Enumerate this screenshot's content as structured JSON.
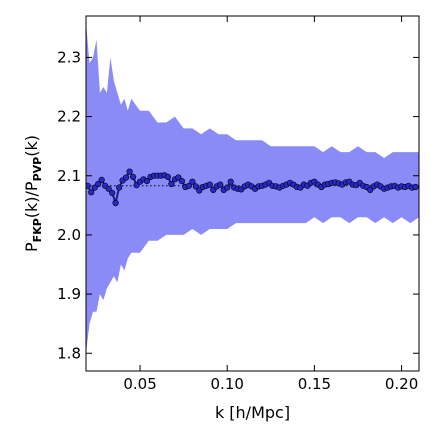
{
  "chart_data": {
    "type": "line",
    "xlabel": "k [h/Mpc]",
    "ylabel": {
      "prefix": "P",
      "sub1": "FKP",
      "mid": "(k)/P",
      "sub2": "PVP",
      "suffix": "(k)"
    },
    "xlim": [
      0.019,
      0.21
    ],
    "ylim": [
      1.77,
      2.37
    ],
    "xticks": [
      0.05,
      0.1,
      0.15,
      0.2
    ],
    "xtick_labels": [
      "0.05",
      "0.10",
      "0.15",
      "0.20"
    ],
    "yticks": [
      1.8,
      1.9,
      2.0,
      2.1,
      2.2,
      2.3
    ],
    "ytick_labels": [
      "1.8",
      "1.9",
      "2.0",
      "2.1",
      "2.2",
      "2.3"
    ],
    "reference_line": {
      "y": 2.083,
      "style": "dotted"
    },
    "colors": {
      "band": "#8b8bf7",
      "line": "#1c1c8c",
      "marker": "#2828c8"
    },
    "series": [
      {
        "role": "mean",
        "x": [
          0.02,
          0.022,
          0.024,
          0.026,
          0.028,
          0.03,
          0.032,
          0.034,
          0.036,
          0.038,
          0.04,
          0.042,
          0.044,
          0.046,
          0.048,
          0.05,
          0.052,
          0.054,
          0.056,
          0.058,
          0.06,
          0.062,
          0.064,
          0.066,
          0.068,
          0.07,
          0.072,
          0.074,
          0.076,
          0.078,
          0.08,
          0.082,
          0.084,
          0.086,
          0.088,
          0.09,
          0.092,
          0.094,
          0.096,
          0.098,
          0.1,
          0.102,
          0.104,
          0.106,
          0.108,
          0.11,
          0.112,
          0.114,
          0.116,
          0.118,
          0.12,
          0.122,
          0.124,
          0.126,
          0.128,
          0.13,
          0.132,
          0.134,
          0.136,
          0.138,
          0.14,
          0.142,
          0.144,
          0.146,
          0.148,
          0.15,
          0.152,
          0.154,
          0.156,
          0.158,
          0.16,
          0.162,
          0.164,
          0.166,
          0.168,
          0.17,
          0.172,
          0.174,
          0.176,
          0.178,
          0.18,
          0.182,
          0.184,
          0.186,
          0.188,
          0.19,
          0.192,
          0.194,
          0.196,
          0.198,
          0.2,
          0.202,
          0.204,
          0.206,
          0.208
        ],
        "y": [
          2.083,
          2.072,
          2.08,
          2.086,
          2.093,
          2.083,
          2.078,
          2.071,
          2.054,
          2.08,
          2.092,
          2.097,
          2.107,
          2.098,
          2.084,
          2.09,
          2.094,
          2.091,
          2.098,
          2.1,
          2.1,
          2.1,
          2.101,
          2.098,
          2.086,
          2.094,
          2.097,
          2.091,
          2.081,
          2.083,
          2.09,
          2.082,
          2.075,
          2.081,
          2.083,
          2.085,
          2.076,
          2.082,
          2.085,
          2.076,
          2.08,
          2.09,
          2.08,
          2.078,
          2.077,
          2.082,
          2.085,
          2.082,
          2.078,
          2.082,
          2.083,
          2.085,
          2.088,
          2.083,
          2.082,
          2.08,
          2.083,
          2.085,
          2.088,
          2.085,
          2.081,
          2.08,
          2.085,
          2.083,
          2.088,
          2.09,
          2.085,
          2.081,
          2.085,
          2.086,
          2.088,
          2.089,
          2.087,
          2.085,
          2.089,
          2.09,
          2.085,
          2.084,
          2.088,
          2.083,
          2.081,
          2.076,
          2.082,
          2.085,
          2.082,
          2.078,
          2.08,
          2.082,
          2.083,
          2.08,
          2.082,
          2.081,
          2.083,
          2.08,
          2.081
        ]
      },
      {
        "role": "band-upper",
        "x": [
          0.019,
          0.021,
          0.023,
          0.025,
          0.027,
          0.029,
          0.031,
          0.033,
          0.035,
          0.037,
          0.039,
          0.041,
          0.043,
          0.045,
          0.05,
          0.055,
          0.06,
          0.065,
          0.07,
          0.075,
          0.08,
          0.085,
          0.09,
          0.095,
          0.1,
          0.105,
          0.11,
          0.115,
          0.12,
          0.125,
          0.13,
          0.135,
          0.14,
          0.145,
          0.15,
          0.155,
          0.16,
          0.165,
          0.17,
          0.175,
          0.18,
          0.185,
          0.19,
          0.195,
          0.2,
          0.205,
          0.21
        ],
        "y": [
          2.36,
          2.29,
          2.3,
          2.33,
          2.24,
          2.25,
          2.24,
          2.3,
          2.26,
          2.24,
          2.22,
          2.23,
          2.21,
          2.23,
          2.21,
          2.21,
          2.19,
          2.19,
          2.2,
          2.18,
          2.18,
          2.17,
          2.18,
          2.17,
          2.17,
          2.16,
          2.16,
          2.16,
          2.16,
          2.15,
          2.15,
          2.15,
          2.15,
          2.15,
          2.15,
          2.14,
          2.15,
          2.14,
          2.14,
          2.15,
          2.14,
          2.14,
          2.13,
          2.14,
          2.14,
          2.14,
          2.14
        ]
      },
      {
        "role": "band-lower",
        "x": [
          0.019,
          0.021,
          0.023,
          0.025,
          0.027,
          0.029,
          0.031,
          0.033,
          0.035,
          0.037,
          0.039,
          0.041,
          0.043,
          0.045,
          0.05,
          0.055,
          0.06,
          0.065,
          0.07,
          0.075,
          0.08,
          0.085,
          0.09,
          0.095,
          0.1,
          0.105,
          0.11,
          0.115,
          0.12,
          0.125,
          0.13,
          0.135,
          0.14,
          0.145,
          0.15,
          0.155,
          0.16,
          0.165,
          0.17,
          0.175,
          0.18,
          0.185,
          0.19,
          0.195,
          0.2,
          0.205,
          0.21
        ],
        "y": [
          1.8,
          1.85,
          1.87,
          1.87,
          1.9,
          1.89,
          1.91,
          1.92,
          1.93,
          1.92,
          1.95,
          1.94,
          1.96,
          1.97,
          1.97,
          1.99,
          1.99,
          2.0,
          2.0,
          2.0,
          2.01,
          2.0,
          2.01,
          2.01,
          2.01,
          2.02,
          2.02,
          2.02,
          2.02,
          2.02,
          2.02,
          2.02,
          2.02,
          2.02,
          2.03,
          2.02,
          2.03,
          2.03,
          2.02,
          2.03,
          2.03,
          2.02,
          2.03,
          2.02,
          2.03,
          2.02,
          2.03
        ]
      }
    ]
  }
}
